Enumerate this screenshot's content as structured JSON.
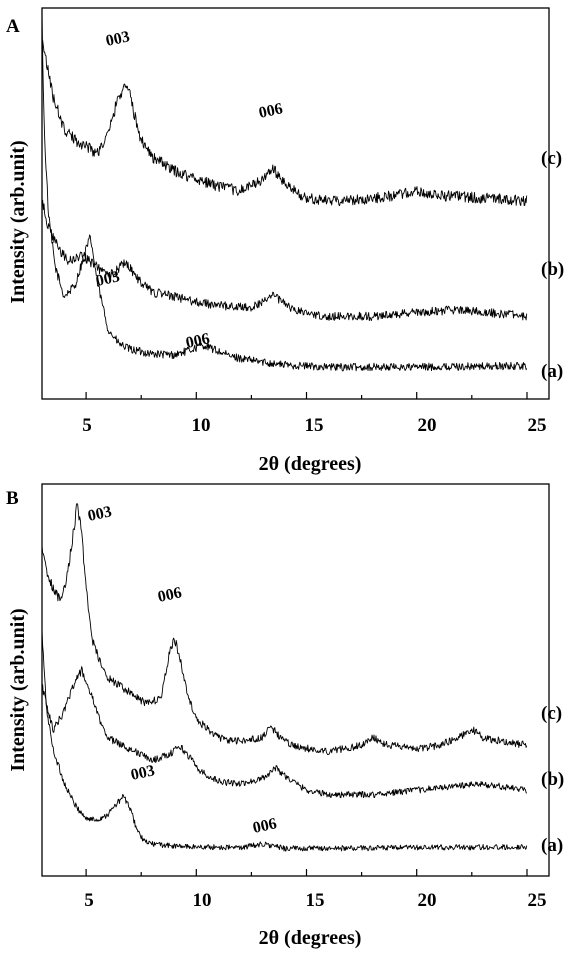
{
  "chart_data": [
    {
      "type": "line",
      "panel_label": "A",
      "xlabel": "2θ (degrees)",
      "ylabel": "Intensity (arb.unit)",
      "xlim": [
        3,
        26
      ],
      "x_ticks": [
        5,
        10,
        15,
        20,
        25
      ],
      "y_ticks": "none",
      "grid": false,
      "legend": "none; traces labelled at right end",
      "series": [
        {
          "name": "(a)",
          "x": [
            3.0,
            3.1,
            3.3,
            3.6,
            4.0,
            4.5,
            4.9,
            5.2,
            5.5,
            6.0,
            6.5,
            7.0,
            8.0,
            9.0,
            9.8,
            10.3,
            10.8,
            11.5,
            12.5,
            14.0,
            16.0,
            20.0,
            25.0
          ],
          "y": [
            3.2,
            2.2,
            1.4,
            0.95,
            0.68,
            0.78,
            1.05,
            1.22,
            0.82,
            0.38,
            0.25,
            0.2,
            0.16,
            0.15,
            0.2,
            0.24,
            0.2,
            0.14,
            0.1,
            0.06,
            0.04,
            0.04,
            0.05
          ],
          "peaks": [
            {
              "label": "003",
              "x": 5.2
            },
            {
              "label": "006",
              "x": 10.3
            }
          ]
        },
        {
          "name": "(b)",
          "x": [
            3.0,
            3.3,
            3.8,
            4.2,
            4.8,
            5.3,
            5.9,
            6.3,
            6.8,
            7.3,
            8.0,
            9.0,
            10.0,
            11.0,
            12.5,
            13.2,
            13.5,
            13.8,
            14.5,
            16.0,
            18.0,
            20.0,
            22.0,
            25.0
          ],
          "y": [
            1.55,
            1.3,
            1.1,
            1.0,
            1.05,
            0.98,
            0.88,
            0.9,
            1.0,
            0.85,
            0.72,
            0.68,
            0.63,
            0.6,
            0.58,
            0.65,
            0.72,
            0.64,
            0.55,
            0.5,
            0.5,
            0.54,
            0.56,
            0.5
          ],
          "peaks": []
        },
        {
          "name": "(c)",
          "x": [
            3.0,
            3.2,
            3.5,
            4.0,
            4.5,
            5.0,
            5.5,
            6.0,
            6.4,
            6.8,
            7.0,
            7.4,
            8.0,
            9.0,
            10.0,
            11.0,
            12.0,
            13.0,
            13.5,
            14.0,
            15.0,
            16.0,
            17.5,
            19.0,
            20.0,
            21.0,
            22.5,
            25.0
          ],
          "y": [
            3.05,
            2.8,
            2.5,
            2.2,
            2.1,
            2.05,
            1.98,
            2.15,
            2.45,
            2.63,
            2.5,
            2.15,
            1.95,
            1.82,
            1.75,
            1.68,
            1.64,
            1.74,
            1.84,
            1.7,
            1.57,
            1.55,
            1.56,
            1.6,
            1.63,
            1.6,
            1.58,
            1.55
          ],
          "peaks": [
            {
              "label": "003",
              "x": 6.8
            },
            {
              "label": "006",
              "x": 13.5
            }
          ]
        }
      ]
    },
    {
      "type": "line",
      "panel_label": "B",
      "xlabel": "2θ (degrees)",
      "ylabel": "Intensity (arb.unit)",
      "xlim": [
        3,
        26
      ],
      "x_ticks": [
        5,
        10,
        15,
        20,
        25
      ],
      "y_ticks": "none",
      "grid": false,
      "legend": "none; traces labelled at right end",
      "series": [
        {
          "name": "(a)",
          "x": [
            3.0,
            3.2,
            3.5,
            4.0,
            4.5,
            5.0,
            5.5,
            6.0,
            6.4,
            6.7,
            7.0,
            7.3,
            7.6,
            8.0,
            9.0,
            10.0,
            12.0,
            13.0,
            13.5,
            14.0,
            16.0,
            20.0,
            25.0
          ],
          "y": [
            3.0,
            2.0,
            1.45,
            1.0,
            0.7,
            0.52,
            0.5,
            0.58,
            0.72,
            0.82,
            0.65,
            0.38,
            0.22,
            0.18,
            0.15,
            0.14,
            0.13,
            0.18,
            0.15,
            0.12,
            0.12,
            0.13,
            0.14
          ],
          "peaks": [
            {
              "label": "003",
              "x": 6.7
            },
            {
              "label": "006",
              "x": 13.2
            }
          ]
        },
        {
          "name": "(b)",
          "x": [
            3.0,
            3.5,
            4.0,
            4.4,
            4.8,
            5.2,
            5.6,
            6.0,
            7.0,
            8.0,
            8.8,
            9.2,
            9.6,
            10.2,
            11.0,
            12.0,
            13.0,
            13.6,
            14.2,
            15.0,
            16.0,
            18.0,
            20.0,
            22.0,
            23.0,
            25.0
          ],
          "y": [
            2.3,
            1.7,
            1.95,
            2.3,
            2.5,
            2.2,
            1.85,
            1.6,
            1.45,
            1.3,
            1.38,
            1.5,
            1.38,
            1.15,
            1.02,
            0.98,
            1.06,
            1.2,
            1.05,
            0.9,
            0.84,
            0.84,
            0.9,
            0.96,
            0.98,
            0.9
          ],
          "peaks": []
        },
        {
          "name": "(c)",
          "x": [
            3.0,
            3.2,
            3.5,
            3.8,
            4.1,
            4.4,
            4.6,
            4.8,
            5.0,
            5.3,
            5.7,
            6.0,
            7.0,
            7.8,
            8.4,
            8.8,
            9.0,
            9.3,
            9.6,
            10.0,
            11.0,
            12.0,
            13.0,
            13.4,
            13.8,
            14.5,
            16.0,
            17.5,
            18.0,
            18.5,
            20.0,
            21.0,
            22.0,
            22.5,
            23.0,
            25.0
          ],
          "y": [
            4.1,
            3.85,
            3.6,
            3.45,
            3.7,
            4.3,
            4.75,
            4.35,
            3.6,
            2.9,
            2.55,
            2.4,
            2.2,
            2.05,
            2.15,
            2.75,
            2.95,
            2.6,
            2.2,
            1.85,
            1.6,
            1.55,
            1.6,
            1.75,
            1.6,
            1.48,
            1.42,
            1.5,
            1.62,
            1.52,
            1.45,
            1.5,
            1.62,
            1.72,
            1.6,
            1.5
          ],
          "peaks": [
            {
              "label": "003",
              "x": 4.6
            },
            {
              "label": "006",
              "x": 9.0
            }
          ]
        }
      ]
    }
  ]
}
